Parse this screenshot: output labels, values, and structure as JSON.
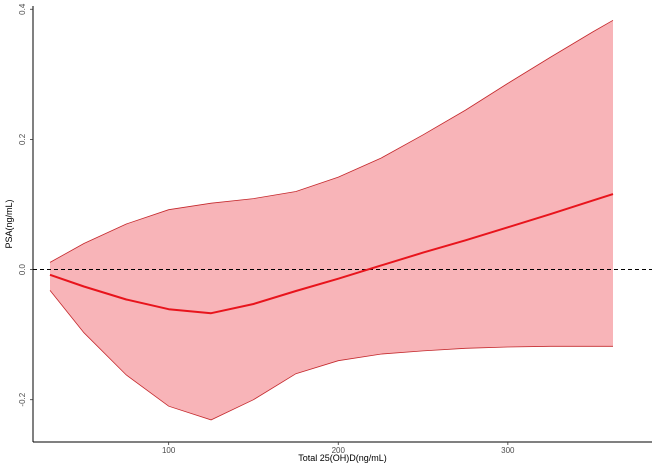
{
  "chart_data": {
    "type": "area",
    "xlabel": "Total 25(OH)D(ng/mL)",
    "ylabel": "PSA(ng/mL)",
    "xlim": [
      20,
      385
    ],
    "ylim": [
      -0.265,
      0.405
    ],
    "x_ticks": [
      100,
      200,
      300
    ],
    "y_ticks": [
      -0.2,
      0.0,
      0.2,
      0.4
    ],
    "x_tick_labels": [
      "100",
      "200",
      "300"
    ],
    "y_tick_labels": [
      "-0.2",
      "0.0",
      "0.2",
      "0.4"
    ],
    "reference_line": {
      "y": 0.0,
      "style": "dashed",
      "color": "#000000"
    },
    "grid": false,
    "legend": "none",
    "colors": {
      "line": "#e8141c",
      "band_fill": "#f8b4b8",
      "band_edge": "#c4282c"
    },
    "x": [
      30,
      50,
      75,
      100,
      125,
      150,
      175,
      200,
      225,
      250,
      275,
      300,
      325,
      350,
      362
    ],
    "series": [
      {
        "role": "estimate",
        "values": [
          -0.008,
          -0.026,
          -0.046,
          -0.061,
          -0.067,
          -0.053,
          -0.033,
          -0.014,
          0.006,
          0.026,
          0.045,
          0.065,
          0.085,
          0.106,
          0.116
        ]
      },
      {
        "role": "upper",
        "values": [
          0.011,
          0.04,
          0.07,
          0.092,
          0.102,
          0.109,
          0.12,
          0.142,
          0.171,
          0.207,
          0.245,
          0.286,
          0.326,
          0.365,
          0.383
        ]
      },
      {
        "role": "lower",
        "values": [
          -0.032,
          -0.097,
          -0.162,
          -0.21,
          -0.231,
          -0.2,
          -0.16,
          -0.14,
          -0.13,
          -0.125,
          -0.121,
          -0.119,
          -0.118,
          -0.118,
          -0.118
        ]
      }
    ]
  }
}
